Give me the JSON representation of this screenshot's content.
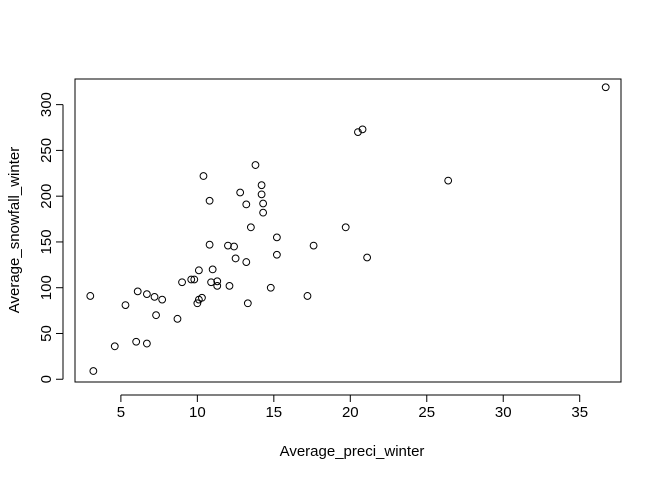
{
  "chart_data": {
    "type": "scatter",
    "title": "",
    "xlabel": "Average_preci_winter",
    "ylabel": "Average_snowfall_winter",
    "xlim": [
      2.0,
      37.7
    ],
    "ylim": [
      -3,
      328
    ],
    "xticks": [
      5,
      10,
      15,
      20,
      25,
      30,
      35
    ],
    "yticks": [
      0,
      50,
      100,
      150,
      200,
      250,
      300
    ],
    "xtick_labels": [
      "5",
      "10",
      "15",
      "20",
      "25",
      "30",
      "35"
    ],
    "ytick_labels": [
      "0",
      "50",
      "100",
      "150",
      "200",
      "250",
      "300"
    ],
    "grid": false,
    "marker": "open-circle",
    "points": [
      {
        "x": 3.0,
        "y": 91
      },
      {
        "x": 3.2,
        "y": 9
      },
      {
        "x": 4.6,
        "y": 36
      },
      {
        "x": 5.3,
        "y": 81
      },
      {
        "x": 6.0,
        "y": 41
      },
      {
        "x": 6.1,
        "y": 96
      },
      {
        "x": 6.7,
        "y": 39
      },
      {
        "x": 6.7,
        "y": 93
      },
      {
        "x": 7.2,
        "y": 90
      },
      {
        "x": 7.3,
        "y": 70
      },
      {
        "x": 7.7,
        "y": 87
      },
      {
        "x": 8.7,
        "y": 66
      },
      {
        "x": 9.0,
        "y": 106
      },
      {
        "x": 9.6,
        "y": 109
      },
      {
        "x": 9.8,
        "y": 109
      },
      {
        "x": 10.0,
        "y": 83
      },
      {
        "x": 10.1,
        "y": 87
      },
      {
        "x": 10.1,
        "y": 119
      },
      {
        "x": 10.3,
        "y": 89
      },
      {
        "x": 10.4,
        "y": 222
      },
      {
        "x": 10.8,
        "y": 195
      },
      {
        "x": 10.8,
        "y": 147
      },
      {
        "x": 10.9,
        "y": 106
      },
      {
        "x": 11.0,
        "y": 120
      },
      {
        "x": 11.3,
        "y": 107
      },
      {
        "x": 11.3,
        "y": 102
      },
      {
        "x": 12.0,
        "y": 146
      },
      {
        "x": 12.1,
        "y": 102
      },
      {
        "x": 12.4,
        "y": 145
      },
      {
        "x": 12.5,
        "y": 132
      },
      {
        "x": 12.8,
        "y": 204
      },
      {
        "x": 13.2,
        "y": 191
      },
      {
        "x": 13.2,
        "y": 128
      },
      {
        "x": 13.3,
        "y": 83
      },
      {
        "x": 13.5,
        "y": 166
      },
      {
        "x": 13.8,
        "y": 234
      },
      {
        "x": 14.2,
        "y": 212
      },
      {
        "x": 14.2,
        "y": 202
      },
      {
        "x": 14.3,
        "y": 192
      },
      {
        "x": 14.3,
        "y": 182
      },
      {
        "x": 14.8,
        "y": 100
      },
      {
        "x": 15.2,
        "y": 155
      },
      {
        "x": 15.2,
        "y": 136
      },
      {
        "x": 17.2,
        "y": 91
      },
      {
        "x": 17.6,
        "y": 146
      },
      {
        "x": 19.7,
        "y": 166
      },
      {
        "x": 20.5,
        "y": 270
      },
      {
        "x": 20.8,
        "y": 273
      },
      {
        "x": 21.1,
        "y": 133
      },
      {
        "x": 26.4,
        "y": 217
      },
      {
        "x": 36.7,
        "y": 319
      }
    ]
  }
}
